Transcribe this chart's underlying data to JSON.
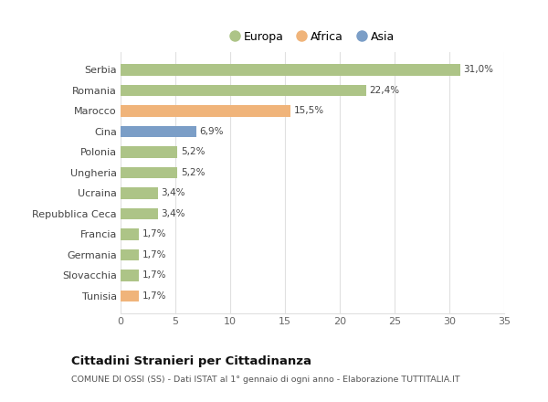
{
  "categories": [
    "Serbia",
    "Romania",
    "Marocco",
    "Cina",
    "Polonia",
    "Ungheria",
    "Ucraina",
    "Repubblica Ceca",
    "Francia",
    "Germania",
    "Slovacchia",
    "Tunisia"
  ],
  "values": [
    31.0,
    22.4,
    15.5,
    6.9,
    5.2,
    5.2,
    3.4,
    3.4,
    1.7,
    1.7,
    1.7,
    1.7
  ],
  "labels": [
    "31,0%",
    "22,4%",
    "15,5%",
    "6,9%",
    "5,2%",
    "5,2%",
    "3,4%",
    "3,4%",
    "1,7%",
    "1,7%",
    "1,7%",
    "1,7%"
  ],
  "colors": [
    "#adc487",
    "#adc487",
    "#f0b47a",
    "#7b9ec7",
    "#adc487",
    "#adc487",
    "#adc487",
    "#adc487",
    "#adc487",
    "#adc487",
    "#adc487",
    "#f0b47a"
  ],
  "legend": [
    {
      "label": "Europa",
      "color": "#adc487"
    },
    {
      "label": "Africa",
      "color": "#f0b47a"
    },
    {
      "label": "Asia",
      "color": "#7b9ec7"
    }
  ],
  "xlim": [
    0,
    35
  ],
  "xticks": [
    0,
    5,
    10,
    15,
    20,
    25,
    30,
    35
  ],
  "title": "Cittadini Stranieri per Cittadinanza",
  "subtitle": "COMUNE DI OSSI (SS) - Dati ISTAT al 1° gennaio di ogni anno - Elaborazione TUTTITALIA.IT",
  "bg_color": "#ffffff",
  "grid_color": "#e0e0e0",
  "bar_height": 0.55
}
